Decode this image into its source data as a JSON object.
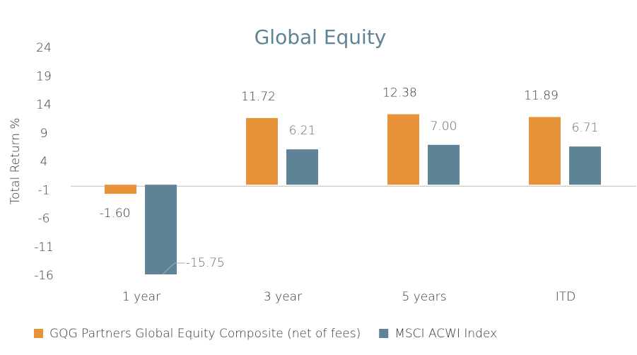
{
  "chart_data": {
    "type": "bar",
    "title": "Global Equity",
    "y_label": "Total Return %",
    "categories": [
      "1 year",
      "3 year",
      "5 years",
      "ITD"
    ],
    "series": [
      {
        "name": "GQG Partners Global Equity Composite (net of fees)",
        "color": "#e8923a",
        "values": [
          -1.6,
          11.72,
          12.38,
          11.89
        ],
        "value_labels": [
          "-1.60",
          "11.72",
          "12.38",
          "11.89"
        ]
      },
      {
        "name": "MSCI ACWI Index",
        "color": "#5e8396",
        "values": [
          -15.75,
          6.21,
          7.0,
          6.71
        ],
        "value_labels": [
          "-15.75",
          "6.21",
          "7.00",
          "6.71"
        ]
      }
    ],
    "ylim": [
      -16,
      24
    ],
    "yticks": [
      -16,
      -11,
      -6,
      -1,
      4,
      9,
      14,
      19,
      24
    ],
    "legend": "bottom"
  }
}
